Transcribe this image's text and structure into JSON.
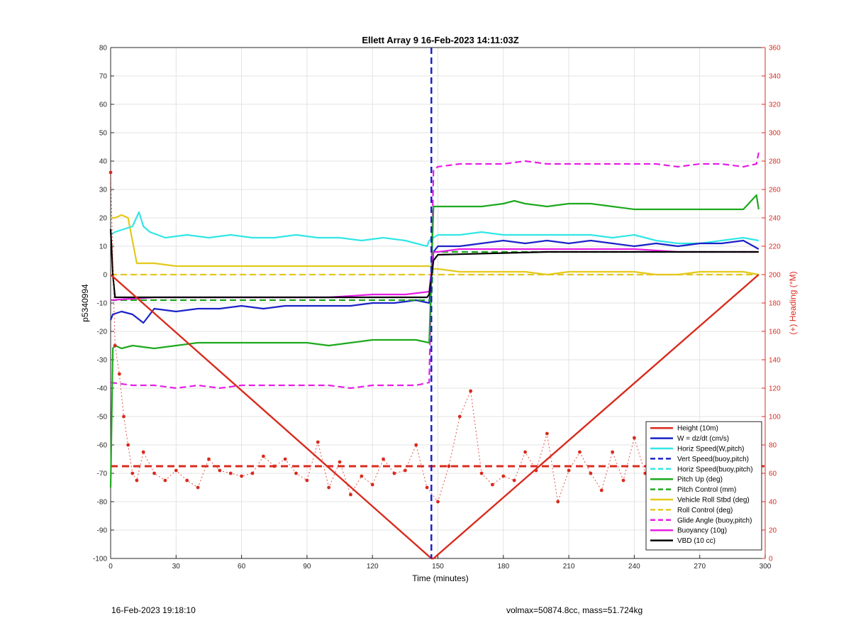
{
  "footer": {
    "left": "16-Feb-2023 19:18:10",
    "right": "volmax=50874.8cc, mass=51.724kg"
  },
  "colors": {
    "height": "#d92b1e",
    "w": "#1a23c7",
    "horiz": "#32e6e6",
    "pitch": "#1ea91e",
    "roll": "#e3c91c",
    "glide": "#e61ee6",
    "buoyancy": "#e61ee6",
    "vbd": "#000000",
    "heading": "#d92b1e",
    "marker_line": "#1a23c7"
  },
  "chart_data": {
    "type": "line",
    "title": "Ellett Array 9 16-Feb-2023 14:11:03Z",
    "xlabel": "Time (minutes)",
    "ylabel": "p5340994",
    "ylabel_right": "(+) Heading (°M)",
    "xlim": [
      0,
      300
    ],
    "ylim": [
      -100,
      80
    ],
    "ylim_right": [
      0,
      360
    ],
    "xticks": [
      0,
      30,
      60,
      90,
      120,
      150,
      180,
      210,
      240,
      270,
      300
    ],
    "yticks": [
      -100,
      -90,
      -80,
      -70,
      -60,
      -50,
      -40,
      -30,
      -20,
      -10,
      0,
      10,
      20,
      30,
      40,
      50,
      60,
      70,
      80
    ],
    "yticks_right": [
      0,
      20,
      40,
      60,
      80,
      100,
      120,
      140,
      160,
      180,
      200,
      220,
      240,
      260,
      280,
      300,
      320,
      340,
      360
    ],
    "grid": true,
    "legend_position": "lower-right",
    "apogee_time": 147,
    "mean_heading": 65,
    "series": [
      {
        "name": "Height (10m)",
        "style": "solid",
        "color_key": "height",
        "x": [
          0,
          147,
          148,
          297
        ],
        "y": [
          0,
          -100,
          -100,
          0
        ]
      },
      {
        "name": "W = dz/dt (cm/s)",
        "style": "solid",
        "color_key": "w",
        "x": [
          0,
          1,
          5,
          10,
          15,
          20,
          30,
          40,
          50,
          60,
          70,
          80,
          90,
          100,
          110,
          120,
          130,
          140,
          146,
          148,
          150,
          160,
          170,
          180,
          190,
          200,
          210,
          220,
          230,
          240,
          250,
          260,
          270,
          280,
          290,
          297
        ],
        "y": [
          -16,
          -14,
          -13,
          -14,
          -17,
          -12,
          -13,
          -12,
          -12,
          -11,
          -12,
          -11,
          -11,
          -11,
          -11,
          -10,
          -10,
          -9,
          -10,
          8,
          10,
          10,
          11,
          12,
          11,
          12,
          11,
          12,
          11,
          10,
          11,
          10,
          11,
          11,
          12,
          9
        ]
      },
      {
        "name": "Horiz Speed(W,pitch)",
        "style": "solid",
        "color_key": "horiz",
        "x": [
          0,
          2,
          6,
          10,
          13,
          15,
          18,
          25,
          35,
          45,
          55,
          65,
          75,
          85,
          95,
          105,
          115,
          125,
          135,
          140,
          145,
          146,
          148,
          150,
          160,
          170,
          180,
          190,
          200,
          210,
          220,
          230,
          240,
          250,
          260,
          270,
          280,
          290,
          297
        ],
        "y": [
          14,
          15,
          16,
          17,
          22,
          17,
          15,
          13,
          14,
          13,
          14,
          13,
          13,
          14,
          13,
          13,
          12,
          13,
          12,
          11,
          10,
          12,
          13,
          14,
          14,
          15,
          14,
          14,
          14,
          14,
          14,
          13,
          14,
          12,
          11,
          11,
          12,
          13,
          12
        ]
      },
      {
        "name": "Vert Speed(buoy,pitch)",
        "style": "dashed",
        "color_key": "w",
        "x": [],
        "y": []
      },
      {
        "name": "Horiz Speed(buoy,pitch)",
        "style": "dashed",
        "color_key": "horiz",
        "x": [],
        "y": []
      },
      {
        "name": "Pitch Up (deg)",
        "style": "solid",
        "color_key": "pitch",
        "x": [
          0,
          1,
          2,
          5,
          10,
          20,
          30,
          40,
          50,
          60,
          70,
          80,
          90,
          100,
          110,
          120,
          130,
          140,
          146,
          148,
          150,
          160,
          170,
          180,
          185,
          190,
          200,
          210,
          220,
          230,
          240,
          250,
          260,
          270,
          280,
          290,
          296,
          297
        ],
        "y": [
          -75,
          -26,
          -25,
          -26,
          -25,
          -26,
          -25,
          -24,
          -24,
          -24,
          -24,
          -24,
          -24,
          -25,
          -24,
          -23,
          -23,
          -23,
          -24,
          24,
          24,
          24,
          24,
          25,
          26,
          25,
          24,
          25,
          25,
          24,
          23,
          23,
          23,
          23,
          23,
          23,
          28,
          23
        ]
      },
      {
        "name": "Pitch Control (mm)",
        "style": "dashed",
        "color_key": "pitch",
        "x": [
          0,
          146,
          147,
          148,
          297
        ],
        "y": [
          -9,
          -9,
          -9,
          8,
          8
        ]
      },
      {
        "name": "Vehicle Roll Stbd (deg)",
        "style": "solid",
        "color_key": "roll",
        "x": [
          0,
          2,
          5,
          8,
          12,
          20,
          30,
          40,
          50,
          60,
          70,
          80,
          90,
          100,
          110,
          120,
          130,
          140,
          146,
          148,
          150,
          160,
          170,
          180,
          190,
          200,
          210,
          220,
          230,
          240,
          250,
          260,
          270,
          280,
          290,
          297
        ],
        "y": [
          20,
          20,
          21,
          20,
          4,
          4,
          3,
          3,
          3,
          3,
          3,
          3,
          3,
          3,
          3,
          3,
          3,
          3,
          3,
          2,
          2,
          1,
          1,
          1,
          1,
          0,
          1,
          1,
          1,
          1,
          0,
          0,
          1,
          1,
          1,
          0
        ]
      },
      {
        "name": "Roll Control (deg)",
        "style": "dashed",
        "color_key": "roll",
        "x": [
          0,
          146,
          147,
          148,
          297
        ],
        "y": [
          0,
          0,
          0,
          0,
          0
        ]
      },
      {
        "name": "Glide Angle (buoy,pitch)",
        "style": "dashed",
        "color_key": "glide",
        "x": [
          0,
          10,
          20,
          30,
          40,
          50,
          60,
          70,
          80,
          90,
          100,
          110,
          120,
          130,
          140,
          146,
          148,
          150,
          160,
          170,
          180,
          190,
          200,
          210,
          220,
          230,
          240,
          250,
          260,
          270,
          280,
          290,
          296,
          297
        ],
        "y": [
          -38,
          -39,
          -39,
          -40,
          -39,
          -40,
          -39,
          -39,
          -39,
          -39,
          -39,
          -40,
          -39,
          -39,
          -39,
          -38,
          37,
          38,
          39,
          39,
          39,
          40,
          39,
          39,
          39,
          39,
          39,
          39,
          38,
          39,
          39,
          38,
          39,
          43
        ]
      },
      {
        "name": "Buoyancy (10g)",
        "style": "solid",
        "color_key": "buoyancy",
        "x": [
          0,
          20,
          40,
          60,
          80,
          100,
          120,
          135,
          146,
          148,
          150,
          160,
          170,
          180,
          200,
          220,
          240,
          260,
          280,
          297
        ],
        "y": [
          -9,
          -8,
          -8,
          -8,
          -8,
          -8,
          -7,
          -7,
          -6,
          8,
          8,
          9,
          9,
          9,
          9,
          9,
          9,
          8,
          8,
          8
        ]
      },
      {
        "name": "VBD (10 cc)",
        "style": "solid",
        "color_key": "vbd",
        "x": [
          0,
          1,
          2,
          40,
          80,
          120,
          145,
          146,
          148,
          150,
          200,
          260,
          297
        ],
        "y": [
          16,
          0,
          -8,
          -8,
          -8,
          -8,
          -8,
          -7,
          5,
          7,
          8,
          8,
          8
        ]
      },
      {
        "name": "Heading",
        "axis": "right",
        "style": "dots",
        "color_key": "heading",
        "x": [
          0,
          2,
          4,
          6,
          8,
          10,
          12,
          15,
          20,
          25,
          30,
          35,
          40,
          45,
          50,
          55,
          60,
          65,
          70,
          75,
          80,
          85,
          90,
          95,
          100,
          105,
          110,
          115,
          120,
          125,
          130,
          135,
          140,
          145,
          150,
          155,
          160,
          165,
          170,
          175,
          180,
          185,
          190,
          195,
          200,
          205,
          210,
          215,
          220,
          225,
          230,
          235,
          240,
          245,
          250,
          255,
          260,
          265,
          270,
          275,
          280,
          285,
          290,
          295,
          297
        ],
        "y": [
          272,
          150,
          130,
          100,
          80,
          60,
          55,
          75,
          60,
          55,
          62,
          55,
          50,
          70,
          62,
          60,
          58,
          60,
          72,
          65,
          70,
          60,
          55,
          82,
          50,
          68,
          45,
          58,
          52,
          70,
          60,
          62,
          80,
          50,
          40,
          65,
          100,
          118,
          60,
          52,
          58,
          55,
          75,
          62,
          88,
          40,
          62,
          75,
          60,
          48,
          75,
          55,
          85,
          60,
          78,
          62,
          65,
          55,
          68,
          52,
          72,
          55,
          50,
          70,
          80
        ]
      }
    ]
  }
}
